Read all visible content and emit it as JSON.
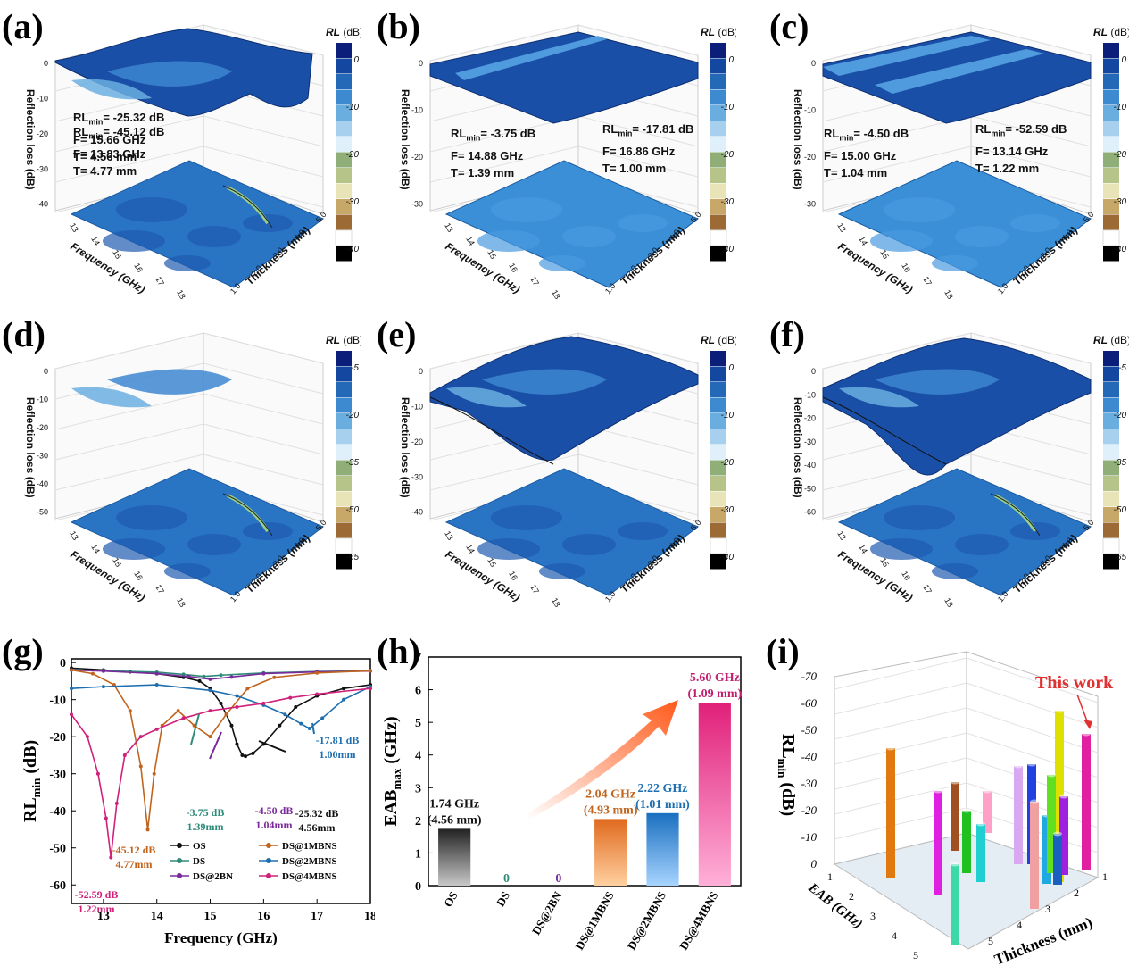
{
  "panels": {
    "a": {
      "label": "(a)",
      "rl": "RL",
      "rl_sub": "min",
      "rl_val": "= -25.32 dB",
      "f": "F= 15.66 GHz",
      "t": "T= 4.56 mm",
      "zticks": [
        "0",
        "-10",
        "-20",
        "-30",
        "-40"
      ],
      "cbar_ticks": [
        "0",
        "-10",
        "-20",
        "-30",
        "-40"
      ]
    },
    "b": {
      "label": "(b)",
      "rl": "RL",
      "rl_sub": "min",
      "rl_val": "= -3.75 dB",
      "f": "F= 14.88 GHz",
      "t": "T= 1.39 mm",
      "zticks": [
        "0",
        "-10",
        "-20",
        "-30"
      ],
      "cbar_ticks": [
        "0",
        "-10",
        "-20",
        "-30",
        "-40"
      ]
    },
    "c": {
      "label": "(c)",
      "rl": "RL",
      "rl_sub": "min",
      "rl_val": "= -4.50 dB",
      "f": "F= 15.00 GHz",
      "t": "T= 1.04 mm",
      "zticks": [
        "0",
        "-10",
        "-20",
        "-30"
      ],
      "cbar_ticks": [
        "0",
        "-10",
        "-20",
        "-30",
        "-40"
      ]
    },
    "d": {
      "label": "(d)",
      "rl": "RL",
      "rl_sub": "min",
      "rl_val": "= -45.12 dB",
      "f": "F= 13.83 GHz",
      "t": "T= 4.77 mm",
      "zticks": [
        "0",
        "-10",
        "-20",
        "-30",
        "-40",
        "-50"
      ],
      "cbar_ticks": [
        "-5",
        "-20",
        "-35",
        "-50",
        "-65"
      ]
    },
    "e": {
      "label": "(e)",
      "rl": "RL",
      "rl_sub": "min",
      "rl_val": "= -17.81 dB",
      "f": "F= 16.86 GHz",
      "t": "T= 1.00 mm",
      "zticks": [
        "0",
        "-10",
        "-20",
        "-30",
        "-40"
      ],
      "cbar_ticks": [
        "0",
        "-10",
        "-20",
        "-30",
        "-40"
      ]
    },
    "f": {
      "label": "(f)",
      "rl": "RL",
      "rl_sub": "min",
      "rl_val": "= -52.59 dB",
      "f": "F= 13.14 GHz",
      "t": "T= 1.22 mm",
      "zticks": [
        "0",
        "-10",
        "-20",
        "-30",
        "-40",
        "-50",
        "-60"
      ],
      "cbar_ticks": [
        "-5",
        "-20",
        "-35",
        "-50",
        "-65"
      ]
    },
    "g": {
      "label": "(g)"
    },
    "h": {
      "label": "(h)"
    },
    "i": {
      "label": "(i)"
    }
  },
  "surface_common": {
    "zlabel": "Reflection loss  (dB)",
    "xlabel": "Frequency (GHz)",
    "ylabel": "Thickness (mm)",
    "freq_ticks": [
      "13",
      "14",
      "15",
      "16",
      "17",
      "18"
    ],
    "thick_ticks": [
      "1.0",
      "2.0",
      "3.0",
      "4.0",
      "5.0"
    ],
    "cbar_title": "RL",
    "cbar_unit": " (dB)",
    "cbar_colors": [
      "#0a1e7a",
      "#1448a0",
      "#2468b8",
      "#3d8ad0",
      "#6aaee0",
      "#a6d0ee",
      "#dff0fa",
      "#8fae78",
      "#b6c48a",
      "#e8e4b8",
      "#c7a868",
      "#9c6b35",
      "#ffffff",
      "#000000"
    ]
  },
  "chart_data": [
    {
      "id": "g",
      "type": "line",
      "xlabel": "Frequency (GHz)",
      "ylabel": "RL",
      "ylabel_sub": "min",
      "ylabel_unit": " (dB)",
      "xlim": [
        12.4,
        18
      ],
      "ylim": [
        -65,
        1
      ],
      "xticks": [
        13,
        14,
        15,
        16,
        17,
        18
      ],
      "yticks": [
        0,
        -10,
        -20,
        -30,
        -40,
        -50,
        -60
      ],
      "legend": "bottom-right",
      "series": [
        {
          "name": "OS",
          "color": "#111111",
          "x": [
            12.4,
            13,
            13.5,
            14,
            14.5,
            14.8,
            15,
            15.2,
            15.4,
            15.5,
            15.6,
            15.66,
            15.8,
            16,
            16.3,
            16.6,
            17,
            17.5,
            18
          ],
          "y": [
            -1.5,
            -2,
            -2.5,
            -3,
            -4,
            -5,
            -7,
            -11,
            -17,
            -22,
            -25,
            -25.3,
            -24.5,
            -22,
            -17,
            -12,
            -9,
            -7,
            -6
          ]
        },
        {
          "name": "DS",
          "color": "#2e8b7a",
          "x": [
            12.4,
            13,
            14,
            14.5,
            14.88,
            15.2,
            16,
            17,
            18
          ],
          "y": [
            -2,
            -2.2,
            -2.6,
            -3.2,
            -3.75,
            -3.4,
            -2.8,
            -2.4,
            -2.2
          ]
        },
        {
          "name": "DS@2BN",
          "color": "#7a2a9a",
          "x": [
            12.4,
            13,
            14,
            14.6,
            15,
            15.4,
            16,
            17,
            18
          ],
          "y": [
            -2,
            -2.3,
            -3,
            -3.8,
            -4.5,
            -3.9,
            -3,
            -2.5,
            -2.3
          ]
        },
        {
          "name": "DS@1MBNS",
          "color": "#c0641e",
          "x": [
            12.4,
            12.8,
            13.2,
            13.5,
            13.7,
            13.83,
            13.95,
            14.1,
            14.4,
            14.7,
            15,
            15.3,
            15.7,
            16.2,
            17,
            18
          ],
          "y": [
            -2,
            -3,
            -6,
            -13,
            -28,
            -45.1,
            -30,
            -17,
            -13,
            -17,
            -20,
            -14,
            -7,
            -4,
            -2.8,
            -2.2
          ]
        },
        {
          "name": "DS@2MBNS",
          "color": "#1f6fb0",
          "x": [
            12.4,
            13,
            14,
            15,
            15.5,
            16,
            16.4,
            16.7,
            16.86,
            17.1,
            17.5,
            18
          ],
          "y": [
            -7,
            -6.5,
            -6,
            -7.5,
            -9,
            -11.5,
            -14,
            -16.5,
            -17.8,
            -15,
            -10,
            -6.5
          ]
        },
        {
          "name": "DS@4MBNS",
          "color": "#d0207a",
          "x": [
            12.4,
            12.7,
            12.9,
            13.05,
            13.14,
            13.25,
            13.4,
            13.7,
            14,
            14.5,
            15,
            15.5,
            16,
            16.5,
            17,
            18
          ],
          "y": [
            -14,
            -20,
            -30,
            -42,
            -52.6,
            -38,
            -25,
            -20,
            -18,
            -15,
            -13,
            -12,
            -11,
            -9.5,
            -8.5,
            -7
          ]
        }
      ],
      "annotations": [
        {
          "text1": "-3.75 dB",
          "text2": "1.39mm",
          "color": "#2e8b7a"
        },
        {
          "text1": "-4.50 dB",
          "text2": "1.04mm",
          "color": "#7a2a9a"
        },
        {
          "text1": "-25.32 dB",
          "text2": "4.56mm",
          "color": "#111111"
        },
        {
          "text1": "-17.81 dB",
          "text2": "1.00mm",
          "color": "#1f6fb0"
        },
        {
          "text1": "-45.12 dB",
          "text2": "4.77mm",
          "color": "#c0641e"
        },
        {
          "text1": "-52.59 dB",
          "text2": "1.22mm",
          "color": "#d0207a"
        }
      ]
    },
    {
      "id": "h",
      "type": "bar",
      "categories": [
        "OS",
        "DS",
        "DS@2BN",
        "DS@1MBNS",
        "DS@2MBNS",
        "DS@4MBNS"
      ],
      "values": [
        1.74,
        0,
        0,
        2.04,
        2.22,
        5.6
      ],
      "labels_top": [
        "1.74 GHz",
        "0",
        "0",
        "2.04 GHz",
        "2.22 GHz",
        "5.60 GHz"
      ],
      "labels_bottom": [
        "(4.56 mm)",
        "",
        "",
        "(4.93 mm)",
        "(1.01 mm)",
        "(1.09 mm)"
      ],
      "label_colors": [
        "#111111",
        "#2e8b7a",
        "#7a2a9a",
        "#c0641e",
        "#1f6fb0",
        "#c0206e"
      ],
      "bar_colors": [
        [
          "#222222",
          "#c8c8c8"
        ],
        [
          "#2e8b7a",
          "#2e8b7a"
        ],
        [
          "#7a2a9a",
          "#7a2a9a"
        ],
        [
          "#e06a1e",
          "#ffd0a0"
        ],
        [
          "#1a6fc0",
          "#a8d4ff"
        ],
        [
          "#e0207a",
          "#ffb0d8"
        ]
      ],
      "ylabel": "EAB",
      "ylabel_sub": "max",
      "ylabel_unit": " (GHz)",
      "ylim": [
        0,
        7
      ],
      "yticks": [
        0,
        1,
        2,
        3,
        4,
        5,
        6,
        7
      ]
    },
    {
      "id": "i",
      "type": "bar3d",
      "xlabel": "EAB (GHz)",
      "ylabel": "Thickness (mm)",
      "zlabel": "RL",
      "zlabel_sub": "min",
      "zlabel_unit": " (dB)",
      "zticks": [
        "0",
        "-10",
        "-20",
        "-30",
        "-40",
        "-50",
        "-60",
        "-70"
      ],
      "eab_ticks": [
        "1",
        "2",
        "3",
        "4",
        "5",
        "6"
      ],
      "thick_ticks": [
        "1",
        "2",
        "3",
        "4",
        "5"
      ],
      "highlight": "This work",
      "highlight_color": "#e03030",
      "bar_colors": [
        "#e07a10",
        "#3cd8a8",
        "#e020e0",
        "#a05020",
        "#20c020",
        "#ffa0c8",
        "#20d0d0",
        "#d8a8f0",
        "#e0e000",
        "#2040e0",
        "#f0a0a0",
        "#20a8e0",
        "#e020a0",
        "#60e020",
        "#a020e0",
        "#1a60c0"
      ]
    }
  ]
}
